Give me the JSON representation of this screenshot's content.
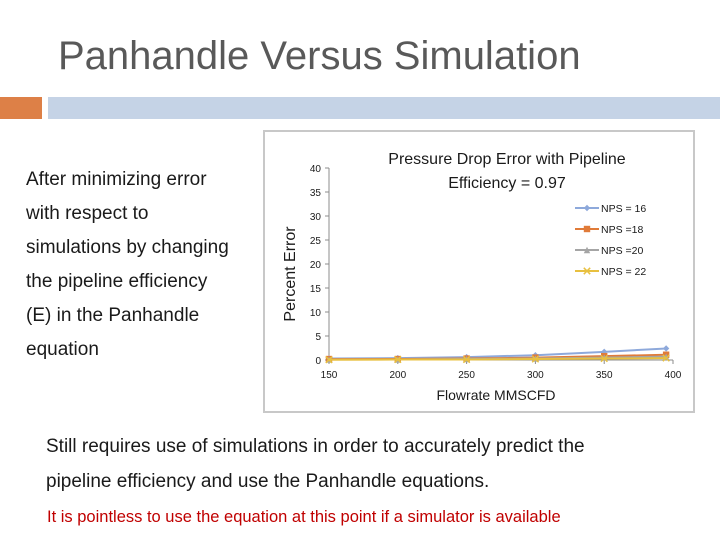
{
  "slide": {
    "title": "Panhandle Versus Simulation",
    "left_lines": [
      "After minimizing error",
      "with respect to",
      "simulations by changing",
      "the pipeline efficiency",
      "(E) in the Panhandle",
      "equation"
    ],
    "bottom_line_1": "Still requires use of simulations in order to accurately predict the",
    "bottom_line_2": "pipeline efficiency and use the Panhandle equations.",
    "bottom_red": "It is pointless to use the equation at this point if a simulator is available",
    "accent_orange": "#dd8047",
    "accent_blue": "#c5d3e6",
    "red_text_color": "#c00000"
  },
  "chart_data": {
    "type": "line",
    "title_line1": "Pressure Drop Error with Pipeline",
    "title_line2": "Efficiency = 0.97",
    "xlabel": "Flowrate MMSCFD",
    "ylabel": "Percent Error",
    "xlim": [
      150,
      400
    ],
    "ylim": [
      0,
      40
    ],
    "xticks": [
      "150",
      "200",
      "250",
      "300",
      "350",
      "400"
    ],
    "yticks": [
      "0",
      "5",
      "10",
      "15",
      "20",
      "25",
      "30",
      "35",
      "40"
    ],
    "x": [
      150,
      200,
      250,
      300,
      350,
      395
    ],
    "legend_position": "top-right",
    "grid": false,
    "series": [
      {
        "name": "NPS = 16",
        "color": "#8ea9db",
        "marker": "diamond",
        "values": [
          0.3,
          0.4,
          0.6,
          1.0,
          1.7,
          2.4
        ]
      },
      {
        "name": "NPS =18",
        "color": "#e07b39",
        "marker": "square",
        "values": [
          0.2,
          0.2,
          0.3,
          0.5,
          0.8,
          1.1
        ]
      },
      {
        "name": "NPS =20",
        "color": "#a5a5a5",
        "marker": "triangle",
        "values": [
          0.1,
          0.1,
          0.2,
          0.3,
          0.5,
          0.7
        ]
      },
      {
        "name": "NPS = 22",
        "color": "#e8c040",
        "marker": "x",
        "values": [
          0.05,
          0.1,
          0.1,
          0.2,
          0.3,
          0.4
        ]
      }
    ]
  }
}
